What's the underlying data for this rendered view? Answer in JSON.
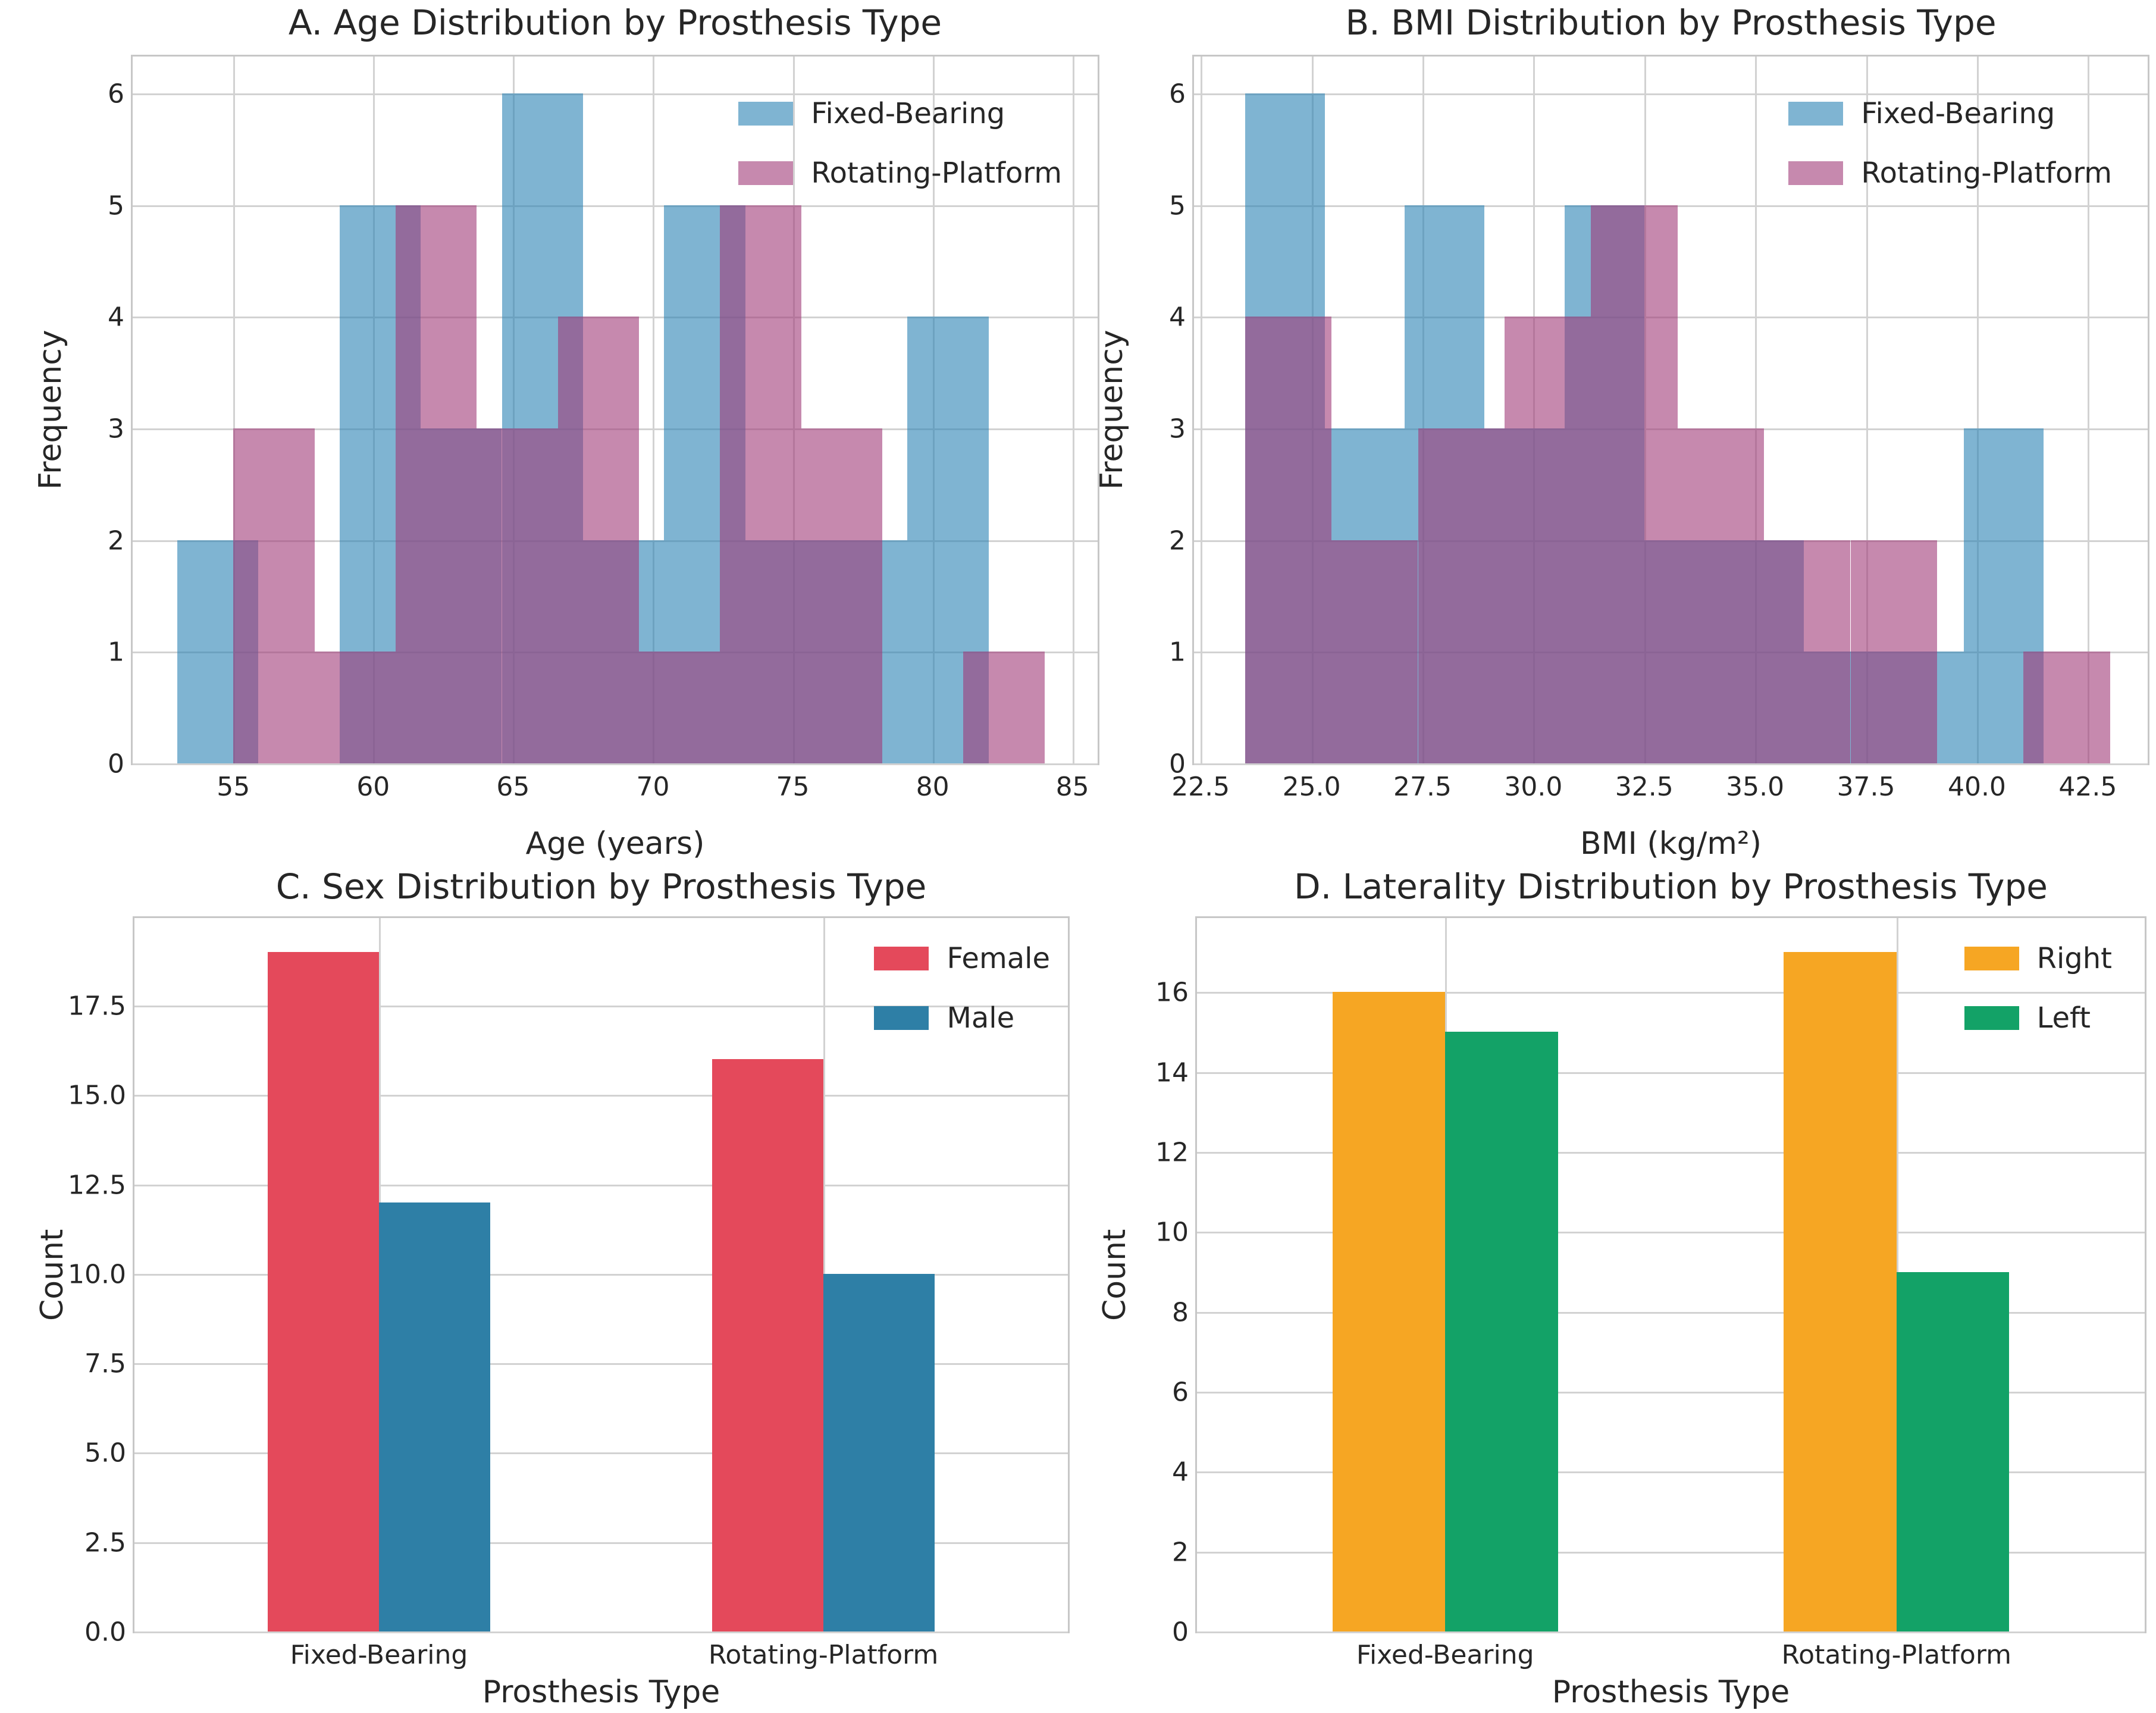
{
  "figure": {
    "background": "#ffffff",
    "text_color": "#262626",
    "grid_color": "#d2d2d2",
    "spine_color": "#c7c7c7"
  },
  "chart_data": [
    {
      "panel": "A",
      "type": "histogram",
      "title": "A. Age Distribution by Prosthesis Type",
      "xlabel": "Age (years)",
      "ylabel": "Frequency",
      "grid": true,
      "legend_position": "top-right",
      "xlim": [
        51.4,
        85.9
      ],
      "ylim": [
        0,
        6.33
      ],
      "xticks": [
        55,
        60,
        65,
        70,
        75,
        80,
        85
      ],
      "xtick_labels": [
        "55",
        "60",
        "65",
        "70",
        "75",
        "80",
        "85"
      ],
      "yticks": [
        0,
        1,
        2,
        3,
        4,
        5,
        6
      ],
      "ytick_labels": [
        "0",
        "1",
        "2",
        "3",
        "4",
        "5",
        "6"
      ],
      "series": [
        {
          "name": "Fixed-Bearing",
          "color": "rgba(42,130,180,0.6)",
          "bins_start": 53.0,
          "bin_width": 2.9,
          "counts": [
            2,
            0,
            5,
            3,
            6,
            2,
            5,
            2,
            2,
            4
          ]
        },
        {
          "name": "Rotating-Platform",
          "color": "rgba(160,58,120,0.6)",
          "bins_start": 55.0,
          "bin_width": 2.9,
          "counts": [
            3,
            1,
            5,
            3,
            4,
            1,
            5,
            3,
            0,
            1
          ]
        }
      ]
    },
    {
      "panel": "B",
      "type": "histogram",
      "title": "B. BMI Distribution by Prosthesis Type",
      "xlabel": "BMI (kg/m²)",
      "ylabel": "Frequency",
      "grid": true,
      "legend_position": "top-right",
      "xlim": [
        22.35,
        43.85
      ],
      "ylim": [
        0,
        6.33
      ],
      "xticks": [
        22.5,
        25.0,
        27.5,
        30.0,
        32.5,
        35.0,
        37.5,
        40.0,
        42.5
      ],
      "xtick_labels": [
        "22.5",
        "25.0",
        "27.5",
        "30.0",
        "32.5",
        "35.0",
        "37.5",
        "40.0",
        "42.5"
      ],
      "yticks": [
        0,
        1,
        2,
        3,
        4,
        5,
        6
      ],
      "ytick_labels": [
        "0",
        "1",
        "2",
        "3",
        "4",
        "5",
        "6"
      ],
      "series": [
        {
          "name": "Fixed-Bearing",
          "color": "rgba(42,130,180,0.6)",
          "bins_start": 23.5,
          "bin_width": 1.8,
          "counts": [
            6,
            3,
            5,
            3,
            5,
            2,
            2,
            1,
            1,
            3
          ]
        },
        {
          "name": "Rotating-Platform",
          "color": "rgba(160,58,120,0.6)",
          "bins_start": 23.5,
          "bin_width": 1.95,
          "counts": [
            4,
            2,
            3,
            4,
            5,
            3,
            2,
            2,
            0,
            1
          ]
        }
      ]
    },
    {
      "panel": "C",
      "type": "grouped_bar",
      "title": "C. Sex Distribution by Prosthesis Type",
      "xlabel": "Prosthesis Type",
      "ylabel": "Count",
      "grid": true,
      "legend_position": "top-right",
      "categories": [
        "Fixed-Bearing",
        "Rotating-Platform"
      ],
      "xlim": [
        -0.55,
        1.55
      ],
      "ylim": [
        0,
        19.95
      ],
      "yticks": [
        0,
        2.5,
        5,
        7.5,
        10,
        12.5,
        15,
        17.5
      ],
      "ytick_labels": [
        "0.0",
        "2.5",
        "5.0",
        "7.5",
        "10.0",
        "12.5",
        "15.0",
        "17.5"
      ],
      "bar_width": 0.25,
      "series": [
        {
          "name": "Female",
          "color": "#E4495B",
          "offset": -0.125,
          "values": [
            19,
            16
          ]
        },
        {
          "name": "Male",
          "color": "#2E7FA6",
          "offset": 0.125,
          "values": [
            12,
            10
          ]
        }
      ]
    },
    {
      "panel": "D",
      "type": "grouped_bar",
      "title": "D. Laterality Distribution by Prosthesis Type",
      "xlabel": "Prosthesis Type",
      "ylabel": "Count",
      "grid": true,
      "legend_position": "top-right",
      "categories": [
        "Fixed-Bearing",
        "Rotating-Platform"
      ],
      "xlim": [
        -0.55,
        1.55
      ],
      "ylim": [
        0,
        17.85
      ],
      "yticks": [
        0,
        2,
        4,
        6,
        8,
        10,
        12,
        14,
        16
      ],
      "ytick_labels": [
        "0",
        "2",
        "4",
        "6",
        "8",
        "10",
        "12",
        "14",
        "16"
      ],
      "bar_width": 0.25,
      "series": [
        {
          "name": "Right",
          "color": "#F6A623",
          "offset": -0.125,
          "values": [
            16,
            17
          ]
        },
        {
          "name": "Left",
          "color": "#13A267",
          "offset": 0.125,
          "values": [
            15,
            9
          ]
        }
      ]
    }
  ]
}
